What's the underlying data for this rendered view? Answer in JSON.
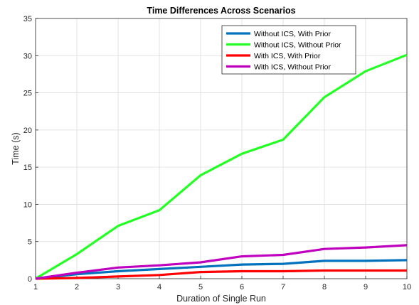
{
  "chart_data": {
    "type": "line",
    "title": "Time Differences Across Scenarios",
    "xlabel": "Duration of Single Run",
    "ylabel": "Time (s)",
    "xlim": [
      1,
      10
    ],
    "ylim": [
      0,
      35
    ],
    "xticks": [
      1,
      2,
      3,
      4,
      5,
      6,
      7,
      8,
      9,
      10
    ],
    "yticks": [
      0,
      5,
      10,
      15,
      20,
      25,
      30,
      35
    ],
    "grid": true,
    "legend_position": "top-right",
    "x": [
      1,
      2,
      3,
      4,
      5,
      6,
      7,
      8,
      9,
      10
    ],
    "series": [
      {
        "name": "Without ICS, With Prior",
        "color": "#0072BD",
        "values": [
          0.0,
          0.6,
          1.0,
          1.3,
          1.6,
          1.9,
          2.0,
          2.4,
          2.4,
          2.5
        ]
      },
      {
        "name": "Without ICS, Without Prior",
        "color": "#22FF22",
        "values": [
          0.0,
          3.3,
          7.1,
          9.2,
          13.9,
          16.8,
          18.7,
          24.4,
          27.9,
          30.1
        ]
      },
      {
        "name": "With ICS, With Prior",
        "color": "#FF0000",
        "values": [
          0.0,
          0.1,
          0.3,
          0.5,
          0.9,
          1.0,
          1.0,
          1.1,
          1.1,
          1.1
        ]
      },
      {
        "name": "With ICS, Without Prior",
        "color": "#BF00BF",
        "values": [
          0.0,
          0.8,
          1.5,
          1.8,
          2.2,
          3.0,
          3.2,
          4.0,
          4.2,
          4.5
        ]
      }
    ]
  }
}
